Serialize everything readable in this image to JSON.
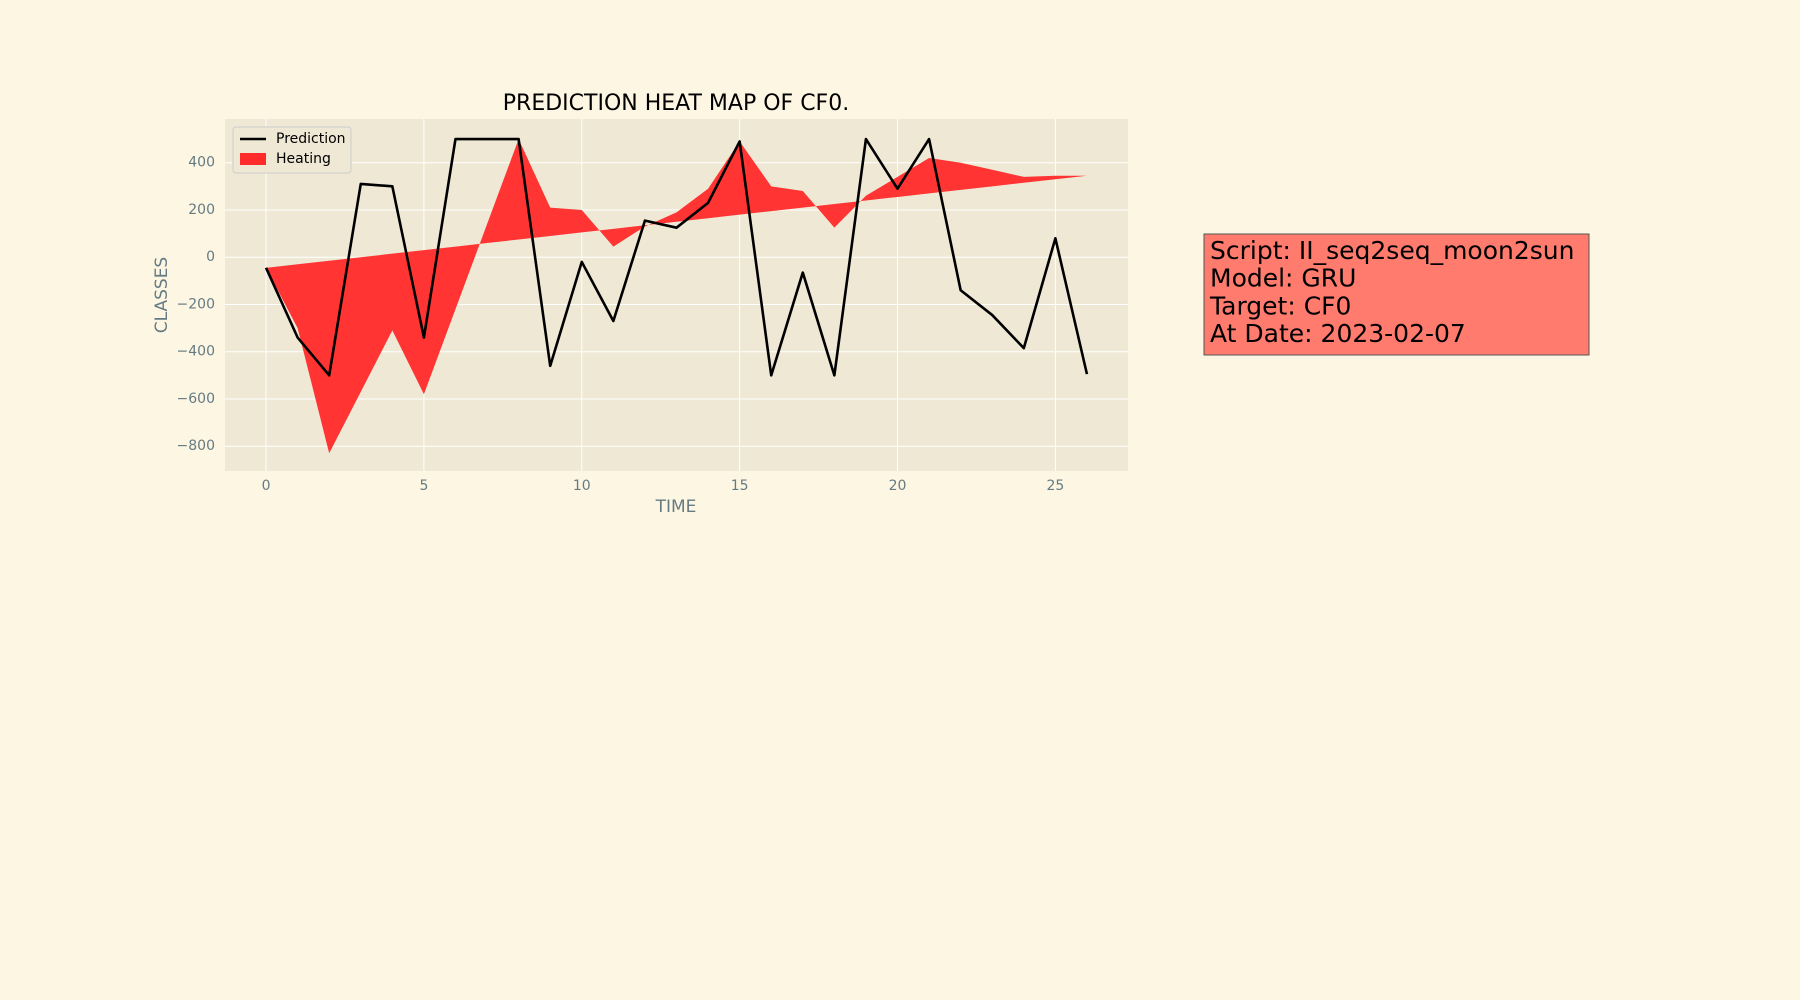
{
  "chart_data": {
    "type": "line_fill",
    "title": "PREDICTION HEAT MAP OF CF0.",
    "xlabel": "TIME",
    "ylabel": "CLASSES",
    "x": [
      0,
      1,
      2,
      3,
      4,
      5,
      6,
      7,
      8,
      9,
      10,
      11,
      12,
      13,
      14,
      15,
      16,
      17,
      18,
      19,
      20,
      21,
      22,
      23,
      24,
      25,
      26
    ],
    "series": [
      {
        "name": "Prediction",
        "color": "#000000",
        "kind": "line",
        "values": [
          -45,
          -340,
          -500,
          310,
          300,
          -340,
          500,
          500,
          500,
          -460,
          -20,
          -270,
          155,
          125,
          230,
          490,
          -500,
          -65,
          -500,
          500,
          290,
          500,
          -140,
          -245,
          -385,
          80,
          -495
        ]
      },
      {
        "name": "Heating",
        "color": "#ff2a2a",
        "kind": "fill",
        "values": [
          -45,
          -300,
          -830,
          -570,
          -310,
          -580,
          -220,
          140,
          500,
          210,
          200,
          45,
          130,
          190,
          290,
          490,
          300,
          280,
          125,
          260,
          340,
          420,
          400,
          370,
          340,
          345,
          345
        ],
        "base": [
          -45,
          -30,
          -15,
          0,
          15,
          30,
          45,
          60,
          75,
          90,
          105,
          120,
          135,
          150,
          165,
          180,
          195,
          210,
          225,
          240,
          255,
          270,
          285,
          300,
          315,
          330,
          345
        ]
      }
    ],
    "xlim": [
      -1.3,
      27.3
    ],
    "ylim": [
      -905,
      585
    ],
    "xticks": [
      0,
      5,
      10,
      15,
      20,
      25
    ],
    "yticks": [
      {
        "value": -800,
        "label": "−800"
      },
      {
        "value": -600,
        "label": "−600"
      },
      {
        "value": -400,
        "label": "−400"
      },
      {
        "value": -200,
        "label": "−200"
      },
      0,
      200,
      400
    ],
    "grid": true,
    "legend": "upper left"
  },
  "info_box": {
    "lines": [
      "Script: II_seq2seq_moon2sun",
      "Model: GRU",
      "Target: CF0",
      "At Date: 2023-02-07"
    ]
  }
}
